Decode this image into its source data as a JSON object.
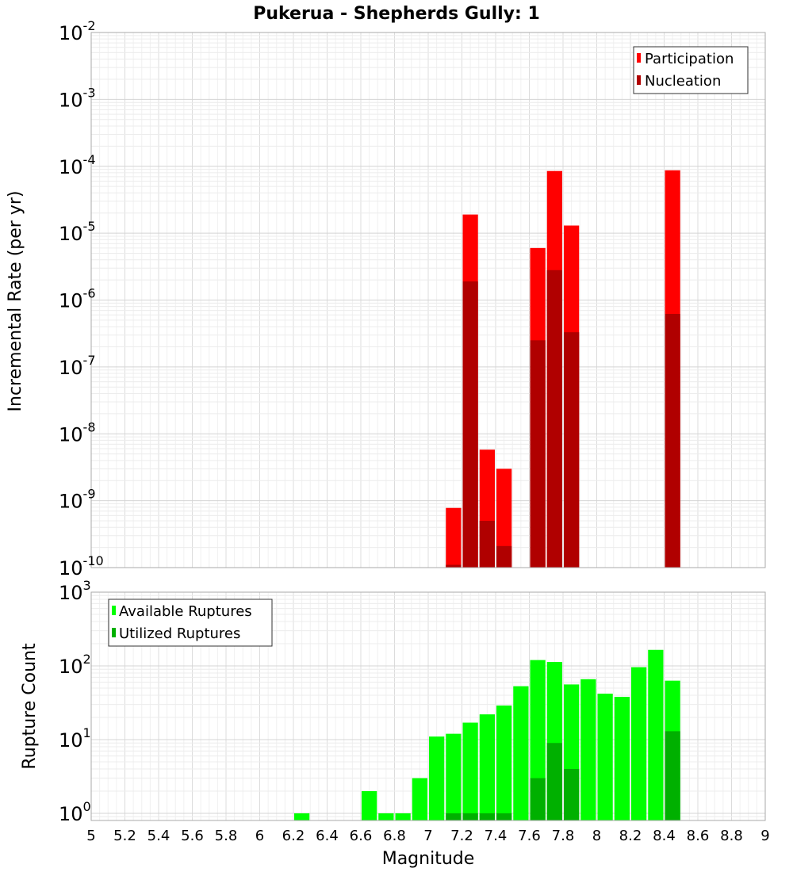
{
  "title": "Pukerua - Shepherds Gully: 1",
  "xlabel": "Magnitude",
  "x_ticks": [
    "5",
    "5.2",
    "5.4",
    "5.6",
    "5.8",
    "6",
    "6.2",
    "6.4",
    "6.6",
    "6.8",
    "7",
    "7.2",
    "7.4",
    "7.6",
    "7.8",
    "8",
    "8.2",
    "8.4",
    "8.6",
    "8.8",
    "9"
  ],
  "top_panel": {
    "ylabel": "Incremental Rate (per yr)",
    "y_exponents": [
      "-2",
      "-3",
      "-4",
      "-5",
      "-6",
      "-7",
      "-8",
      "-9",
      "-10"
    ],
    "legend": [
      "Participation",
      "Nucleation"
    ]
  },
  "bottom_panel": {
    "ylabel": "Rupture Count",
    "y_exponents": [
      "3",
      "2",
      "1",
      "0"
    ],
    "legend": [
      "Available Ruptures",
      "Utilized Ruptures"
    ]
  },
  "colors": {
    "participation": "#ff0000",
    "nucleation": "#b00000",
    "available": "#00ff00",
    "utilized": "#00b000",
    "grid": "#e4e4e4",
    "frame": "#aaaaaa"
  },
  "chart_data": [
    {
      "type": "bar",
      "title": "Pukerua - Shepherds Gully: 1",
      "xlabel": "",
      "ylabel": "Incremental Rate (per yr)",
      "yscale": "log",
      "xlim": [
        5,
        9
      ],
      "ylim": [
        1e-10,
        0.01
      ],
      "bar_width": 0.1,
      "x": [
        7.15,
        7.25,
        7.35,
        7.45,
        7.65,
        7.75,
        7.85,
        8.45
      ],
      "series": [
        {
          "name": "Participation",
          "values": [
            7.8e-10,
            1.9e-05,
            5.8e-09,
            3e-09,
            6e-06,
            8.5e-05,
            1.3e-05,
            8.7e-05
          ]
        },
        {
          "name": "Nucleation",
          "values": [
            1.1e-10,
            1.9e-06,
            5e-10,
            2.1e-10,
            2.5e-07,
            2.8e-06,
            3.3e-07,
            6.2e-07
          ]
        }
      ],
      "legend_position": "top-right",
      "grid": true
    },
    {
      "type": "bar",
      "title": "",
      "xlabel": "Magnitude",
      "ylabel": "Rupture Count",
      "yscale": "log",
      "xlim": [
        5,
        9
      ],
      "ylim": [
        0.8,
        1000
      ],
      "bar_width": 0.1,
      "x": [
        6.25,
        6.65,
        6.75,
        6.85,
        6.95,
        7.05,
        7.15,
        7.25,
        7.35,
        7.45,
        7.55,
        7.65,
        7.75,
        7.85,
        7.95,
        8.05,
        8.15,
        8.25,
        8.35,
        8.45
      ],
      "series": [
        {
          "name": "Available Ruptures",
          "values": [
            1,
            2,
            1,
            1,
            3,
            11,
            12,
            17,
            22,
            29,
            53,
            120,
            113,
            56,
            66,
            42,
            38,
            96,
            165,
            63
          ]
        },
        {
          "name": "Utilized Ruptures",
          "values": [
            0,
            0,
            0,
            0,
            0,
            0,
            1,
            1,
            1,
            1,
            0,
            3,
            9,
            4,
            0,
            0,
            0,
            0,
            0,
            13
          ]
        }
      ],
      "legend_position": "top-left",
      "grid": true
    }
  ]
}
